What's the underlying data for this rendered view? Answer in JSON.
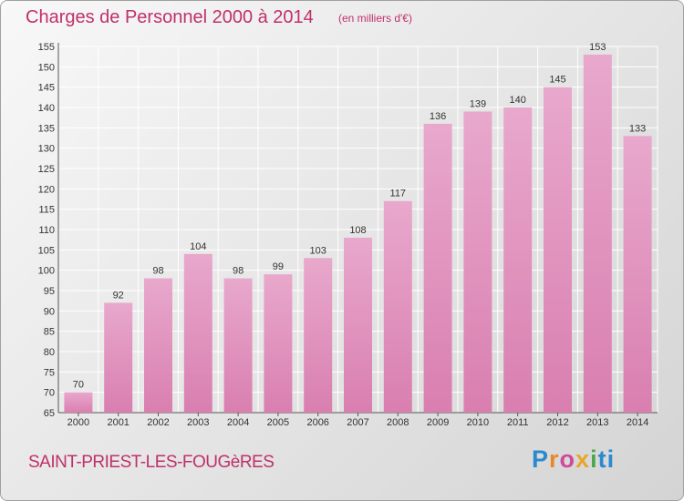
{
  "header": {
    "title": "Charges de Personnel 2000 à 2014",
    "subtitle": "(en milliers d'€)"
  },
  "footer": {
    "city": "SAINT-PRIEST-LES-FOUGèRES",
    "logo_text": "Proxiti",
    "logo_letters": [
      "P",
      "r",
      "o",
      "x",
      "i",
      "ti"
    ]
  },
  "colors": {
    "bar": "#d97fb0",
    "bar_light": "#e8a8cc",
    "title": "#c0306a",
    "grid": "#ffffff",
    "axis_text": "#333333"
  },
  "chart_data": {
    "type": "bar",
    "title": "Charges de Personnel 2000 à 2014",
    "subtitle": "(en milliers d'€)",
    "xlabel": "",
    "ylabel": "",
    "categories": [
      "2000",
      "2001",
      "2002",
      "2003",
      "2004",
      "2005",
      "2006",
      "2007",
      "2008",
      "2009",
      "2010",
      "2011",
      "2012",
      "2013",
      "2014"
    ],
    "values": [
      70,
      92,
      98,
      104,
      98,
      99,
      103,
      108,
      117,
      136,
      139,
      140,
      145,
      153,
      133
    ],
    "ylim": [
      65,
      155
    ],
    "yticks": [
      65,
      70,
      75,
      80,
      85,
      90,
      95,
      100,
      105,
      110,
      115,
      120,
      125,
      130,
      135,
      140,
      145,
      150,
      155
    ],
    "grid": true,
    "legend": "none"
  }
}
